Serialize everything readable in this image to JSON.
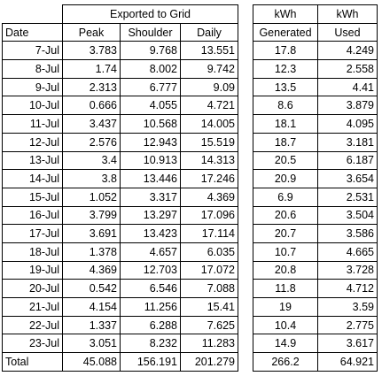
{
  "table": {
    "group_header": "Exported to Grid",
    "unit_headers": [
      "kWh",
      "kWh"
    ],
    "columns": [
      "Date",
      "Peak",
      "Shoulder",
      "Daily",
      "Generated",
      "Used"
    ],
    "rows": [
      [
        "7-Jul",
        3.783,
        9.768,
        13.551,
        17.8,
        4.249
      ],
      [
        "8-Jul",
        1.74,
        8.002,
        9.742,
        12.3,
        2.558
      ],
      [
        "9-Jul",
        2.313,
        6.777,
        9.09,
        13.5,
        4.41
      ],
      [
        "10-Jul",
        0.666,
        4.055,
        4.721,
        8.6,
        3.879
      ],
      [
        "11-Jul",
        3.437,
        10.568,
        14.005,
        18.1,
        4.095
      ],
      [
        "12-Jul",
        2.576,
        12.943,
        15.519,
        18.7,
        3.181
      ],
      [
        "13-Jul",
        3.4,
        10.913,
        14.313,
        20.5,
        6.187
      ],
      [
        "14-Jul",
        3.8,
        13.446,
        17.246,
        20.9,
        3.654
      ],
      [
        "15-Jul",
        1.052,
        3.317,
        4.369,
        6.9,
        2.531
      ],
      [
        "16-Jul",
        3.799,
        13.297,
        17.096,
        20.6,
        3.504
      ],
      [
        "17-Jul",
        3.691,
        13.423,
        17.114,
        20.7,
        3.586
      ],
      [
        "18-Jul",
        1.378,
        4.657,
        6.035,
        10.7,
        4.665
      ],
      [
        "19-Jul",
        4.369,
        12.703,
        17.072,
        20.8,
        3.728
      ],
      [
        "20-Jul",
        0.542,
        6.546,
        7.088,
        11.8,
        4.712
      ],
      [
        "21-Jul",
        4.154,
        11.256,
        15.41,
        19,
        3.59
      ],
      [
        "22-Jul",
        1.337,
        6.288,
        7.625,
        10.4,
        2.775
      ],
      [
        "23-Jul",
        3.051,
        8.232,
        11.283,
        14.9,
        3.617
      ]
    ],
    "total": [
      "Total",
      45.088,
      156.191,
      201.279,
      266.2,
      64.921
    ]
  }
}
